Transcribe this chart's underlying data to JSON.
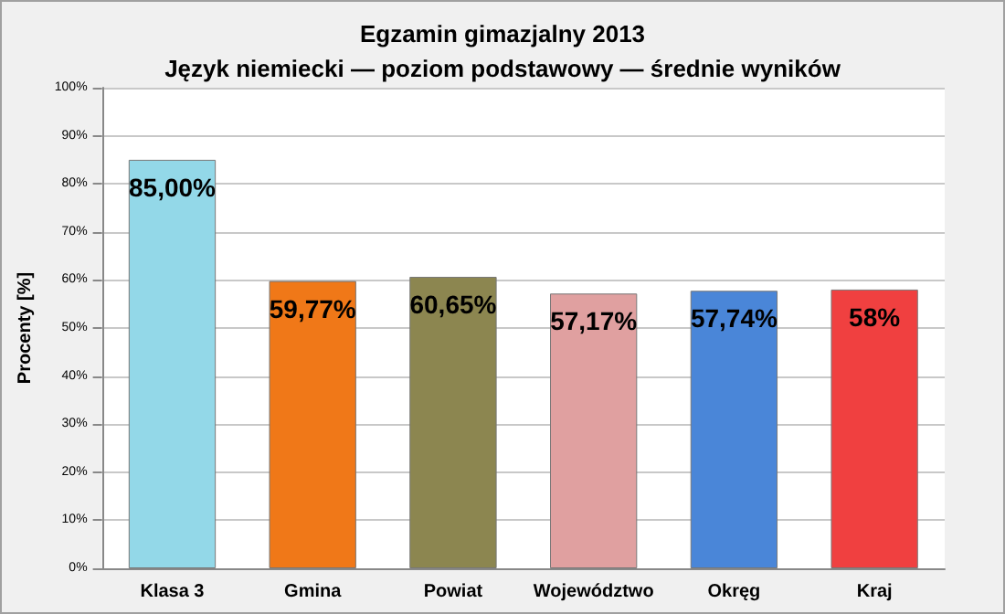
{
  "chart_data": {
    "type": "bar",
    "title": "Egzamin gimazjalny 2013",
    "subtitle": "Język niemiecki — poziom podstawowy — średnie wyników",
    "ylabel": "Procenty [%]",
    "categories": [
      "Klasa 3",
      "Gmina",
      "Powiat",
      "Województwo",
      "Okręg",
      "Kraj"
    ],
    "values": [
      85.0,
      59.77,
      60.65,
      57.17,
      57.74,
      58
    ],
    "colors": [
      "#93d8e8",
      "#f07818",
      "#8c8650",
      "#e0a0a0",
      "#4a86d8",
      "#f04040"
    ],
    "value_labels": [
      "85,00%",
      "59,77%",
      "60,65%",
      "57,17%",
      "57,74%",
      "58%"
    ],
    "ylim": [
      0,
      100
    ],
    "yticks": [
      {
        "value": 0,
        "label": "0%"
      },
      {
        "value": 10,
        "label": "10%"
      },
      {
        "value": 20,
        "label": "20%"
      },
      {
        "value": 30,
        "label": "30%"
      },
      {
        "value": 40,
        "label": "40%"
      },
      {
        "value": 50,
        "label": "50%"
      },
      {
        "value": 60,
        "label": "60%"
      },
      {
        "value": 70,
        "label": "70%"
      },
      {
        "value": 80,
        "label": "80%"
      },
      {
        "value": 90,
        "label": "90%"
      },
      {
        "value": 100,
        "label": "100%"
      }
    ],
    "grid": "y"
  }
}
